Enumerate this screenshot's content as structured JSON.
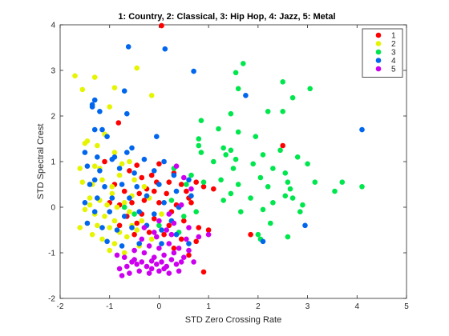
{
  "chart_data": {
    "type": "scatter",
    "title": "1: Country, 2: Classical, 3: Hip Hop, 4: Jazz, 5: Metal",
    "xlabel": "STD Zero Crossing Rate",
    "ylabel": "STD Spectral Crest",
    "xlim": [
      -2,
      5
    ],
    "ylim": [
      -2,
      4
    ],
    "xticks": [
      "-2",
      "-1",
      "0",
      "1",
      "2",
      "3",
      "4",
      "5"
    ],
    "yticks": [
      "-2",
      "-1",
      "0",
      "1",
      "2",
      "3",
      "4"
    ],
    "grid": false,
    "legend_position": "top-right",
    "colors": {
      "axis": "#262626",
      "background": "#ffffff"
    },
    "series": [
      {
        "name": "1",
        "color": "#ff0000",
        "points": [
          [
            0.05,
            3.98
          ],
          [
            -0.82,
            1.85
          ],
          [
            2.5,
            1.35
          ],
          [
            -1.1,
            1.0
          ],
          [
            -0.45,
            0.92
          ],
          [
            0.0,
            0.95
          ],
          [
            0.3,
            0.75
          ],
          [
            -0.6,
            0.8
          ],
          [
            -0.35,
            0.65
          ],
          [
            -0.15,
            0.7
          ],
          [
            0.2,
            0.55
          ],
          [
            0.45,
            0.5
          ],
          [
            0.75,
            0.55
          ],
          [
            1.1,
            0.4
          ],
          [
            0.9,
            0.45
          ],
          [
            -0.9,
            0.5
          ],
          [
            -0.7,
            0.35
          ],
          [
            -0.4,
            0.3
          ],
          [
            -0.1,
            0.35
          ],
          [
            0.15,
            0.3
          ],
          [
            0.55,
            0.35
          ],
          [
            -1.0,
            0.1
          ],
          [
            -0.8,
            0.05
          ],
          [
            -0.55,
            0.1
          ],
          [
            -0.3,
            0.15
          ],
          [
            0.0,
            0.1
          ],
          [
            0.35,
            0.05
          ],
          [
            0.65,
            0.1
          ],
          [
            -0.65,
            -0.2
          ],
          [
            -0.35,
            -0.15
          ],
          [
            -0.1,
            -0.25
          ],
          [
            0.25,
            -0.1
          ],
          [
            0.5,
            -0.3
          ],
          [
            0.8,
            -0.45
          ],
          [
            1.0,
            -0.5
          ],
          [
            -0.2,
            -0.55
          ],
          [
            0.1,
            -0.6
          ],
          [
            0.45,
            -0.7
          ],
          [
            0.75,
            -0.75
          ],
          [
            -0.5,
            -0.6
          ],
          [
            -0.8,
            -0.4
          ],
          [
            0.3,
            -0.9
          ],
          [
            0.6,
            -1.05
          ],
          [
            0.9,
            -1.42
          ],
          [
            1.85,
            -0.6
          ],
          [
            -0.25,
            0.4
          ],
          [
            0.6,
            0.2
          ],
          [
            -0.45,
            -0.35
          ],
          [
            0.2,
            -0.4
          ],
          [
            -0.05,
            0.55
          ]
        ]
      },
      {
        "name": "2",
        "color": "#e5f500",
        "points": [
          [
            -1.7,
            2.88
          ],
          [
            -1.55,
            2.58
          ],
          [
            -1.3,
            2.85
          ],
          [
            -0.9,
            2.62
          ],
          [
            -0.45,
            3.05
          ],
          [
            -0.15,
            2.45
          ],
          [
            -1.0,
            2.2
          ],
          [
            -1.5,
            1.4
          ],
          [
            -1.45,
            1.45
          ],
          [
            -1.1,
            1.6
          ],
          [
            -0.9,
            1.2
          ],
          [
            -1.6,
            0.85
          ],
          [
            -1.3,
            0.9
          ],
          [
            -1.2,
            0.85
          ],
          [
            -0.75,
            0.95
          ],
          [
            -1.55,
            0.55
          ],
          [
            -1.35,
            0.5
          ],
          [
            -1.15,
            0.6
          ],
          [
            -0.95,
            0.3
          ],
          [
            -1.4,
            0.2
          ],
          [
            -1.2,
            0.15
          ],
          [
            -1.05,
            0.05
          ],
          [
            -0.85,
            0.0
          ],
          [
            -0.7,
            0.1
          ],
          [
            -1.5,
            -0.05
          ],
          [
            -1.3,
            -0.15
          ],
          [
            -1.1,
            -0.2
          ],
          [
            -0.9,
            -0.3
          ],
          [
            -0.6,
            -0.1
          ],
          [
            -1.45,
            -0.35
          ],
          [
            -1.25,
            -0.4
          ],
          [
            -1.0,
            -0.45
          ],
          [
            -0.8,
            -0.55
          ],
          [
            -0.55,
            -0.4
          ],
          [
            -1.35,
            -0.6
          ],
          [
            -1.15,
            -0.7
          ],
          [
            -0.9,
            -0.8
          ],
          [
            -0.65,
            -0.65
          ],
          [
            -1.6,
            -0.45
          ],
          [
            -1.0,
            -0.95
          ],
          [
            -0.7,
            -1.0
          ],
          [
            -0.4,
            -0.85
          ],
          [
            -0.3,
            0.45
          ],
          [
            -0.5,
            0.6
          ],
          [
            -0.2,
            0.2
          ],
          [
            0.05,
            -0.15
          ],
          [
            -0.35,
            -0.3
          ],
          [
            -1.25,
            1.35
          ],
          [
            -0.55,
            0.25
          ],
          [
            -0.8,
            0.7
          ],
          [
            -0.6,
            1.0
          ],
          [
            -1.4,
            0.05
          ],
          [
            -0.45,
            -0.5
          ],
          [
            -0.15,
            -0.7
          ],
          [
            -0.95,
            0.45
          ]
        ]
      },
      {
        "name": "3",
        "color": "#00e64d",
        "points": [
          [
            1.7,
            3.15
          ],
          [
            1.55,
            2.95
          ],
          [
            2.5,
            2.75
          ],
          [
            1.6,
            2.6
          ],
          [
            3.05,
            2.6
          ],
          [
            2.7,
            2.4
          ],
          [
            2.5,
            2.1
          ],
          [
            2.2,
            2.1
          ],
          [
            1.45,
            2.05
          ],
          [
            0.85,
            1.9
          ],
          [
            1.2,
            1.72
          ],
          [
            1.6,
            1.65
          ],
          [
            1.95,
            1.55
          ],
          [
            0.8,
            1.5
          ],
          [
            0.8,
            1.35
          ],
          [
            1.3,
            1.3
          ],
          [
            2.45,
            1.25
          ],
          [
            1.45,
            1.25
          ],
          [
            0.85,
            1.2
          ],
          [
            2.1,
            1.15
          ],
          [
            1.55,
            1.05
          ],
          [
            2.8,
            1.1
          ],
          [
            1.1,
            1.0
          ],
          [
            3.0,
            0.95
          ],
          [
            1.9,
            0.95
          ],
          [
            2.3,
            0.85
          ],
          [
            2.55,
            0.75
          ],
          [
            1.5,
            0.85
          ],
          [
            3.15,
            0.55
          ],
          [
            3.7,
            0.55
          ],
          [
            4.1,
            0.45
          ],
          [
            2.05,
            0.65
          ],
          [
            1.25,
            0.6
          ],
          [
            1.6,
            0.5
          ],
          [
            2.2,
            0.45
          ],
          [
            2.65,
            0.4
          ],
          [
            3.55,
            0.35
          ],
          [
            1.45,
            0.3
          ],
          [
            2.55,
            0.25
          ],
          [
            2.7,
            0.2
          ],
          [
            1.85,
            0.2
          ],
          [
            2.9,
            0.05
          ],
          [
            1.3,
            0.15
          ],
          [
            2.3,
            0.1
          ],
          [
            2.1,
            -0.05
          ],
          [
            2.85,
            -0.1
          ],
          [
            0.9,
            0.55
          ],
          [
            0.65,
            0.7
          ],
          [
            0.3,
            0.85
          ],
          [
            0.55,
            0.5
          ],
          [
            1.65,
            -0.1
          ],
          [
            2.25,
            -0.35
          ],
          [
            2.0,
            -0.6
          ],
          [
            2.05,
            -0.7
          ],
          [
            2.6,
            -0.65
          ],
          [
            0.5,
            -0.2
          ],
          [
            0.25,
            0.15
          ],
          [
            -0.5,
            -0.15
          ],
          [
            0.0,
            -0.4
          ],
          [
            0.4,
            -0.55
          ],
          [
            1.35,
            1.15
          ],
          [
            2.6,
            0.55
          ],
          [
            0.75,
            -0.1
          ],
          [
            -0.7,
            0.0
          ]
        ]
      },
      {
        "name": "4",
        "color": "#0066ee",
        "points": [
          [
            -0.62,
            3.52
          ],
          [
            0.12,
            3.47
          ],
          [
            0.7,
            2.98
          ],
          [
            1.75,
            2.45
          ],
          [
            -0.7,
            2.55
          ],
          [
            -1.35,
            2.25
          ],
          [
            -1.3,
            2.35
          ],
          [
            -1.35,
            2.2
          ],
          [
            -1.2,
            2.1
          ],
          [
            -0.65,
            2.05
          ],
          [
            -1.3,
            1.7
          ],
          [
            -1.15,
            1.7
          ],
          [
            -0.05,
            1.55
          ],
          [
            4.1,
            1.7
          ],
          [
            -1.5,
            1.2
          ],
          [
            -1.25,
            1.1
          ],
          [
            -0.95,
            1.05
          ],
          [
            -0.65,
            1.2
          ],
          [
            -0.3,
            1.05
          ],
          [
            0.1,
            1.0
          ],
          [
            -1.45,
            0.9
          ],
          [
            -1.2,
            0.8
          ],
          [
            -0.8,
            0.85
          ],
          [
            -0.5,
            0.75
          ],
          [
            -0.1,
            0.8
          ],
          [
            0.3,
            0.7
          ],
          [
            0.6,
            0.6
          ],
          [
            -1.4,
            0.5
          ],
          [
            -1.1,
            0.45
          ],
          [
            -0.75,
            0.5
          ],
          [
            -0.45,
            0.45
          ],
          [
            0.0,
            0.5
          ],
          [
            0.35,
            0.35
          ],
          [
            0.65,
            0.25
          ],
          [
            -1.5,
            0.1
          ],
          [
            -1.25,
            0.2
          ],
          [
            -0.95,
            0.2
          ],
          [
            -0.6,
            0.2
          ],
          [
            -0.25,
            0.25
          ],
          [
            0.1,
            0.1
          ],
          [
            0.4,
            0.0
          ],
          [
            -1.3,
            -0.1
          ],
          [
            -1.0,
            -0.1
          ],
          [
            -0.7,
            -0.2
          ],
          [
            -0.4,
            -0.1
          ],
          [
            -0.1,
            -0.15
          ],
          [
            0.25,
            -0.3
          ],
          [
            -1.45,
            -0.35
          ],
          [
            -1.15,
            -0.45
          ],
          [
            -0.85,
            -0.5
          ],
          [
            -0.55,
            -0.45
          ],
          [
            -0.25,
            -0.4
          ],
          [
            0.05,
            -0.5
          ],
          [
            0.35,
            -0.6
          ],
          [
            -1.05,
            -0.75
          ],
          [
            -0.75,
            -0.85
          ],
          [
            -0.4,
            -0.8
          ],
          [
            0.05,
            -0.8
          ],
          [
            0.6,
            -0.8
          ],
          [
            2.1,
            -0.75
          ],
          [
            2.95,
            -0.4
          ],
          [
            -1.3,
            0.6
          ],
          [
            -0.9,
            1.1
          ],
          [
            -0.55,
            1.3
          ],
          [
            -1.05,
            1.55
          ]
        ]
      },
      {
        "name": "5",
        "color": "#cc00ee",
        "points": [
          [
            -0.7,
            -1.1
          ],
          [
            -0.5,
            -1.15
          ],
          [
            -0.3,
            -1.0
          ],
          [
            -0.1,
            -1.1
          ],
          [
            0.1,
            -1.05
          ],
          [
            0.3,
            -1.0
          ],
          [
            0.5,
            -1.1
          ],
          [
            0.7,
            -1.2
          ],
          [
            -0.65,
            -1.3
          ],
          [
            -0.45,
            -1.25
          ],
          [
            -0.25,
            -1.3
          ],
          [
            -0.05,
            -1.25
          ],
          [
            0.15,
            -1.3
          ],
          [
            0.35,
            -1.25
          ],
          [
            -0.6,
            -1.45
          ],
          [
            -0.4,
            -1.4
          ],
          [
            -0.2,
            -1.45
          ],
          [
            0.0,
            -1.4
          ],
          [
            0.2,
            -1.45
          ],
          [
            -0.55,
            -1.2
          ],
          [
            -0.35,
            -1.2
          ],
          [
            -0.15,
            -1.18
          ],
          [
            0.05,
            -1.2
          ],
          [
            0.25,
            -1.15
          ],
          [
            0.45,
            -1.2
          ],
          [
            -0.8,
            -1.35
          ],
          [
            -0.75,
            -1.5
          ],
          [
            0.4,
            -1.4
          ],
          [
            -0.5,
            -0.95
          ],
          [
            -0.2,
            -0.85
          ],
          [
            0.0,
            -0.9
          ],
          [
            0.2,
            -0.8
          ],
          [
            0.4,
            -0.9
          ],
          [
            0.6,
            -0.95
          ],
          [
            -0.35,
            -0.7
          ],
          [
            -0.05,
            -0.65
          ],
          [
            0.25,
            -0.6
          ],
          [
            0.55,
            -0.7
          ],
          [
            0.8,
            -0.65
          ],
          [
            1.0,
            -0.6
          ],
          [
            -0.3,
            -0.45
          ],
          [
            0.0,
            -0.3
          ],
          [
            0.3,
            -0.35
          ],
          [
            0.6,
            -0.45
          ],
          [
            0.2,
            -0.15
          ],
          [
            0.45,
            0.05
          ],
          [
            0.65,
            0.4
          ],
          [
            0.5,
            0.65
          ],
          [
            0.35,
            0.9
          ],
          [
            -0.1,
            -0.55
          ],
          [
            0.15,
            -0.5
          ],
          [
            -0.85,
            -1.05
          ],
          [
            0.1,
            -1.35
          ],
          [
            -0.15,
            -1.35
          ]
        ]
      }
    ]
  }
}
